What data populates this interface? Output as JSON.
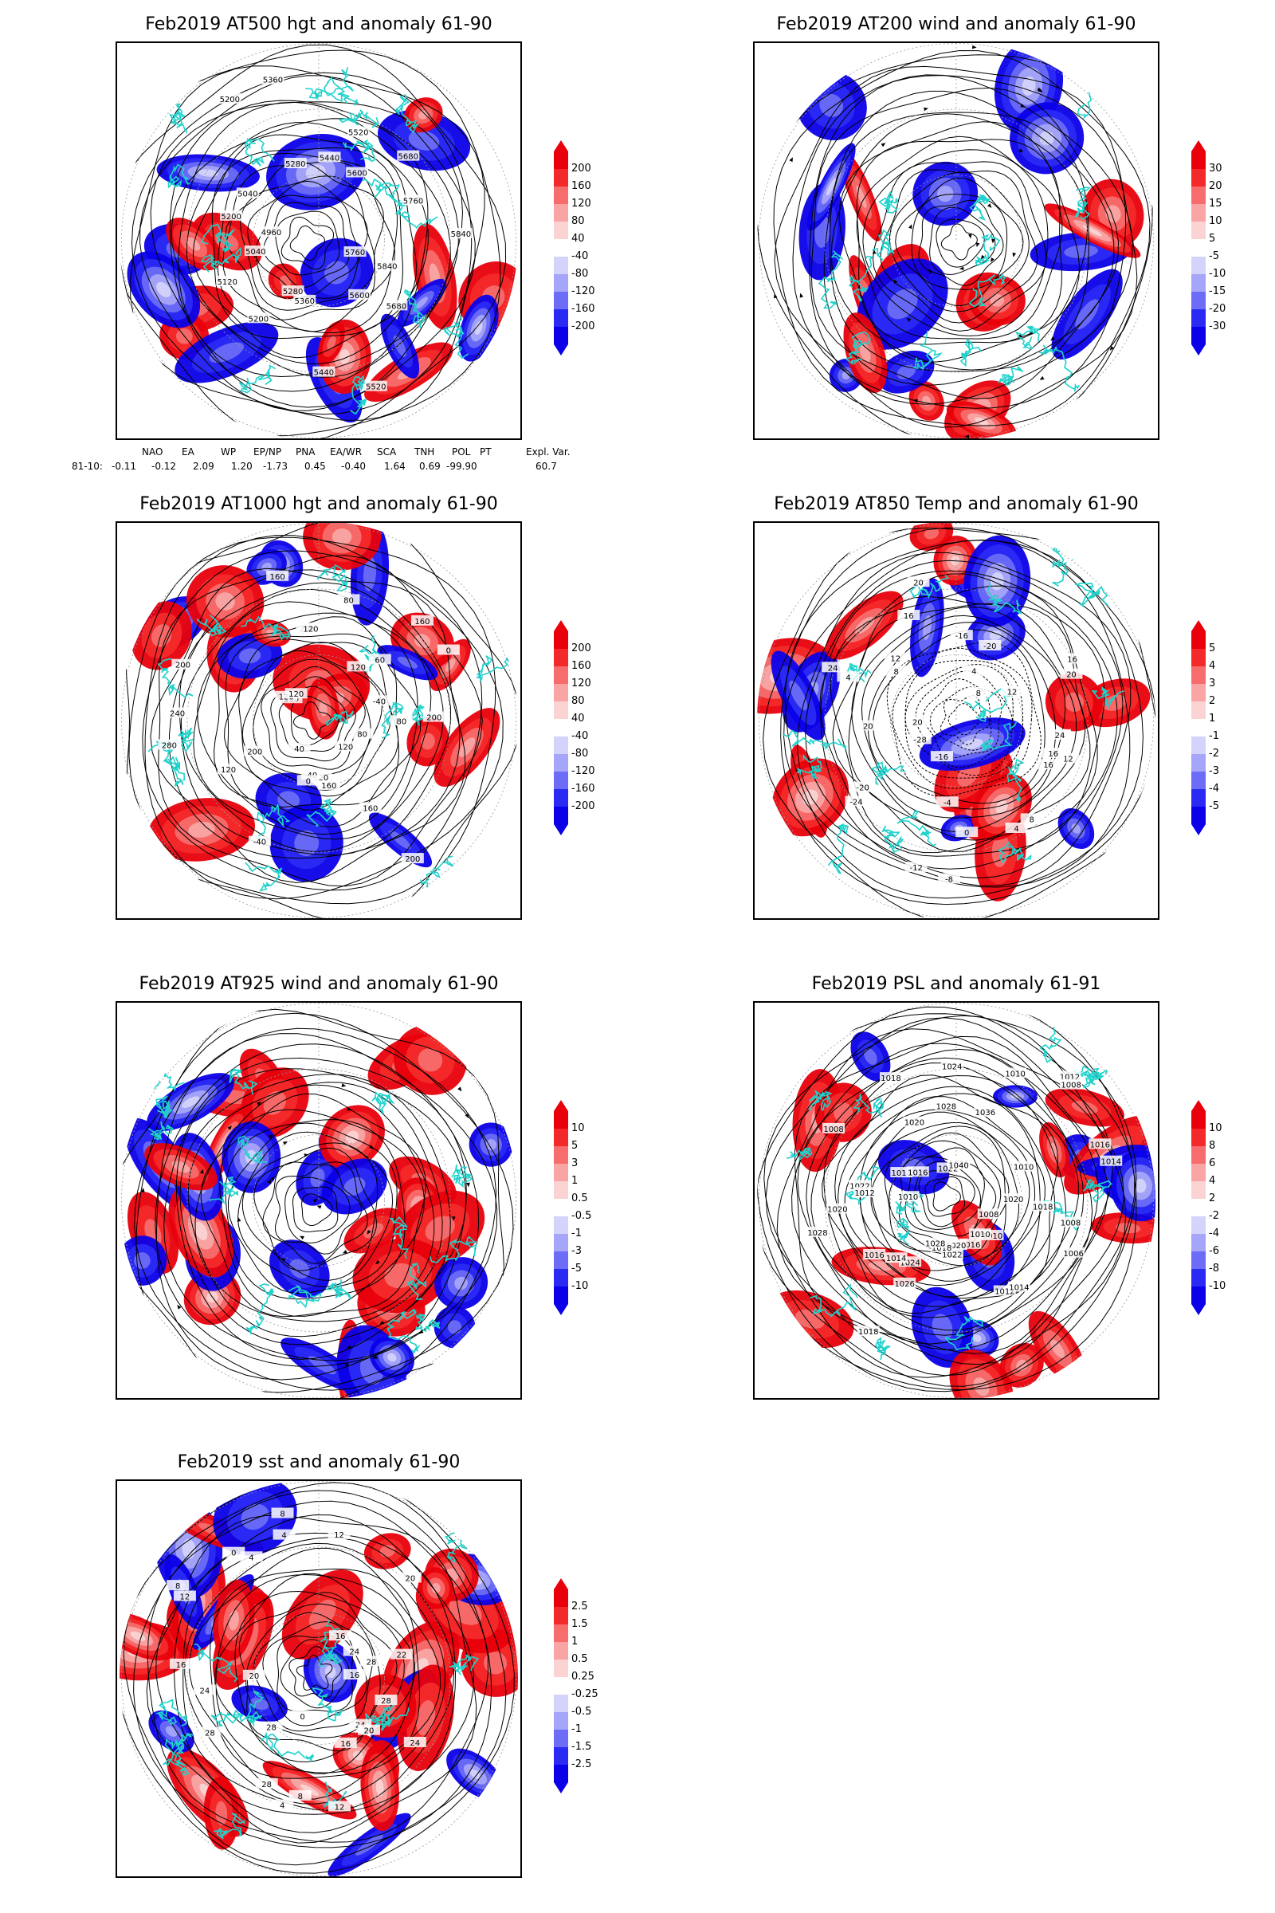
{
  "panels": {
    "p1": {
      "title": "Feb2019 AT500 hgt and anomaly 61-90",
      "contour_labels": [
        "5840",
        "5760",
        "5680",
        "5600",
        "5520",
        "5440",
        "5360",
        "5280",
        "5200",
        "5120",
        "5040",
        "4960",
        "5200",
        "5040",
        "5200",
        "5280",
        "5360",
        "5440",
        "5520",
        "5600",
        "5680",
        "5760",
        "5840"
      ],
      "colorbar": [
        "200",
        "160",
        "120",
        "80",
        "40",
        "-40",
        "-80",
        "-120",
        "-160",
        "-200"
      ]
    },
    "p2": {
      "title": "Feb2019 AT200 wind and anomaly 61-90",
      "colorbar": [
        "30",
        "20",
        "15",
        "10",
        "5",
        "-5",
        "-10",
        "-15",
        "-20",
        "-30"
      ]
    },
    "p3": {
      "title": "Feb2019 AT1000 hgt and anomaly 61-90",
      "contour_labels": [
        "80",
        "80",
        "120",
        "160",
        "200",
        "160",
        "120",
        "40",
        "0",
        "-40",
        "40",
        "200",
        "120",
        "280",
        "240",
        "200",
        "160",
        "120",
        "120",
        "160",
        "200",
        "120",
        "80",
        "120",
        "60",
        "160",
        "0",
        "-40",
        "200"
      ],
      "colorbar": [
        "200",
        "160",
        "120",
        "80",
        "40",
        "-40",
        "-80",
        "-120",
        "-160",
        "-200"
      ]
    },
    "p4": {
      "title": "Feb2019 AT850 Temp and anomaly 61-90",
      "contour_labels": [
        "12",
        "16",
        "16",
        "8",
        "4",
        "0",
        "-4",
        "-8",
        "-12",
        "-16",
        "-20",
        "-24",
        "-28",
        "20",
        "20",
        "24",
        "4",
        "8",
        "12",
        "16",
        "20",
        "-16",
        "-20",
        "4",
        "8",
        "12",
        "16",
        "20",
        "24"
      ],
      "colorbar": [
        "5",
        "4",
        "3",
        "2",
        "1",
        "-1",
        "-2",
        "-3",
        "-4",
        "-5"
      ]
    },
    "p5": {
      "title": "Feb2019 AT925 wind and anomaly 61-90",
      "colorbar": [
        "10",
        "5",
        "3",
        "1",
        "0.5",
        "-0.5",
        "-1",
        "-3",
        "-5",
        "-10"
      ]
    },
    "p6": {
      "title": "Feb2019 PSL and anomaly 61-91",
      "contour_labels": [
        "1008",
        "1006",
        "1008",
        "1010",
        "1010",
        "1012",
        "1014",
        "1016",
        "1020",
        "1022",
        "1018",
        "1028",
        "1024",
        "1026",
        "1018",
        "1014",
        "1016",
        "1028",
        "1020",
        "1022",
        "1010",
        "1012",
        "1008",
        "1014",
        "1016",
        "1018",
        "1020",
        "1022",
        "1024",
        "1026",
        "1028",
        "1040",
        "1036",
        "1010",
        "1012",
        "1008",
        "1010",
        "1014",
        "1016",
        "1018",
        "1020"
      ],
      "colorbar": [
        "10",
        "8",
        "6",
        "4",
        "2",
        "-2",
        "-4",
        "-6",
        "-8",
        "-10"
      ]
    },
    "p7": {
      "title": "Feb2019 sst and anomaly 61-90",
      "contour_labels": [
        "28",
        "24",
        "24",
        "20",
        "16",
        "12",
        "8",
        "4",
        "0",
        "28",
        "28",
        "28",
        "24",
        "20",
        "16",
        "12",
        "8",
        "4",
        "0",
        "4",
        "8",
        "12",
        "16",
        "20",
        "24",
        "28",
        "22",
        "16"
      ],
      "colorbar": [
        "2.5",
        "1.5",
        "1",
        "0.5",
        "0.25",
        "-0.25",
        "-0.5",
        "-1",
        "-1.5",
        "-2.5"
      ]
    }
  },
  "indices": {
    "headers": [
      "NAO",
      "EA",
      "WP",
      "EP/NP",
      "PNA",
      "EA/WR",
      "SCA",
      "TNH",
      "POL",
      "PT",
      "Expl. Var."
    ],
    "row_label": "81-10:",
    "values": [
      "-0.11",
      "-0.12",
      "2.09",
      "1.20",
      "-1.73",
      "0.45",
      "-0.40",
      "1.64",
      "0.69",
      "-99.90",
      "60.7"
    ]
  },
  "colors": {
    "anomaly_scale": [
      "#e8000b",
      "#f42a2a",
      "#f76c6c",
      "#f9a5a5",
      "#fbd3d3",
      "#ffffff",
      "#d3d3fb",
      "#a5a5f9",
      "#6c6cf7",
      "#2a2af4",
      "#0b00e8"
    ],
    "contour": "#000000",
    "coastline": "#1fd2cc",
    "graticule": "#999999"
  }
}
